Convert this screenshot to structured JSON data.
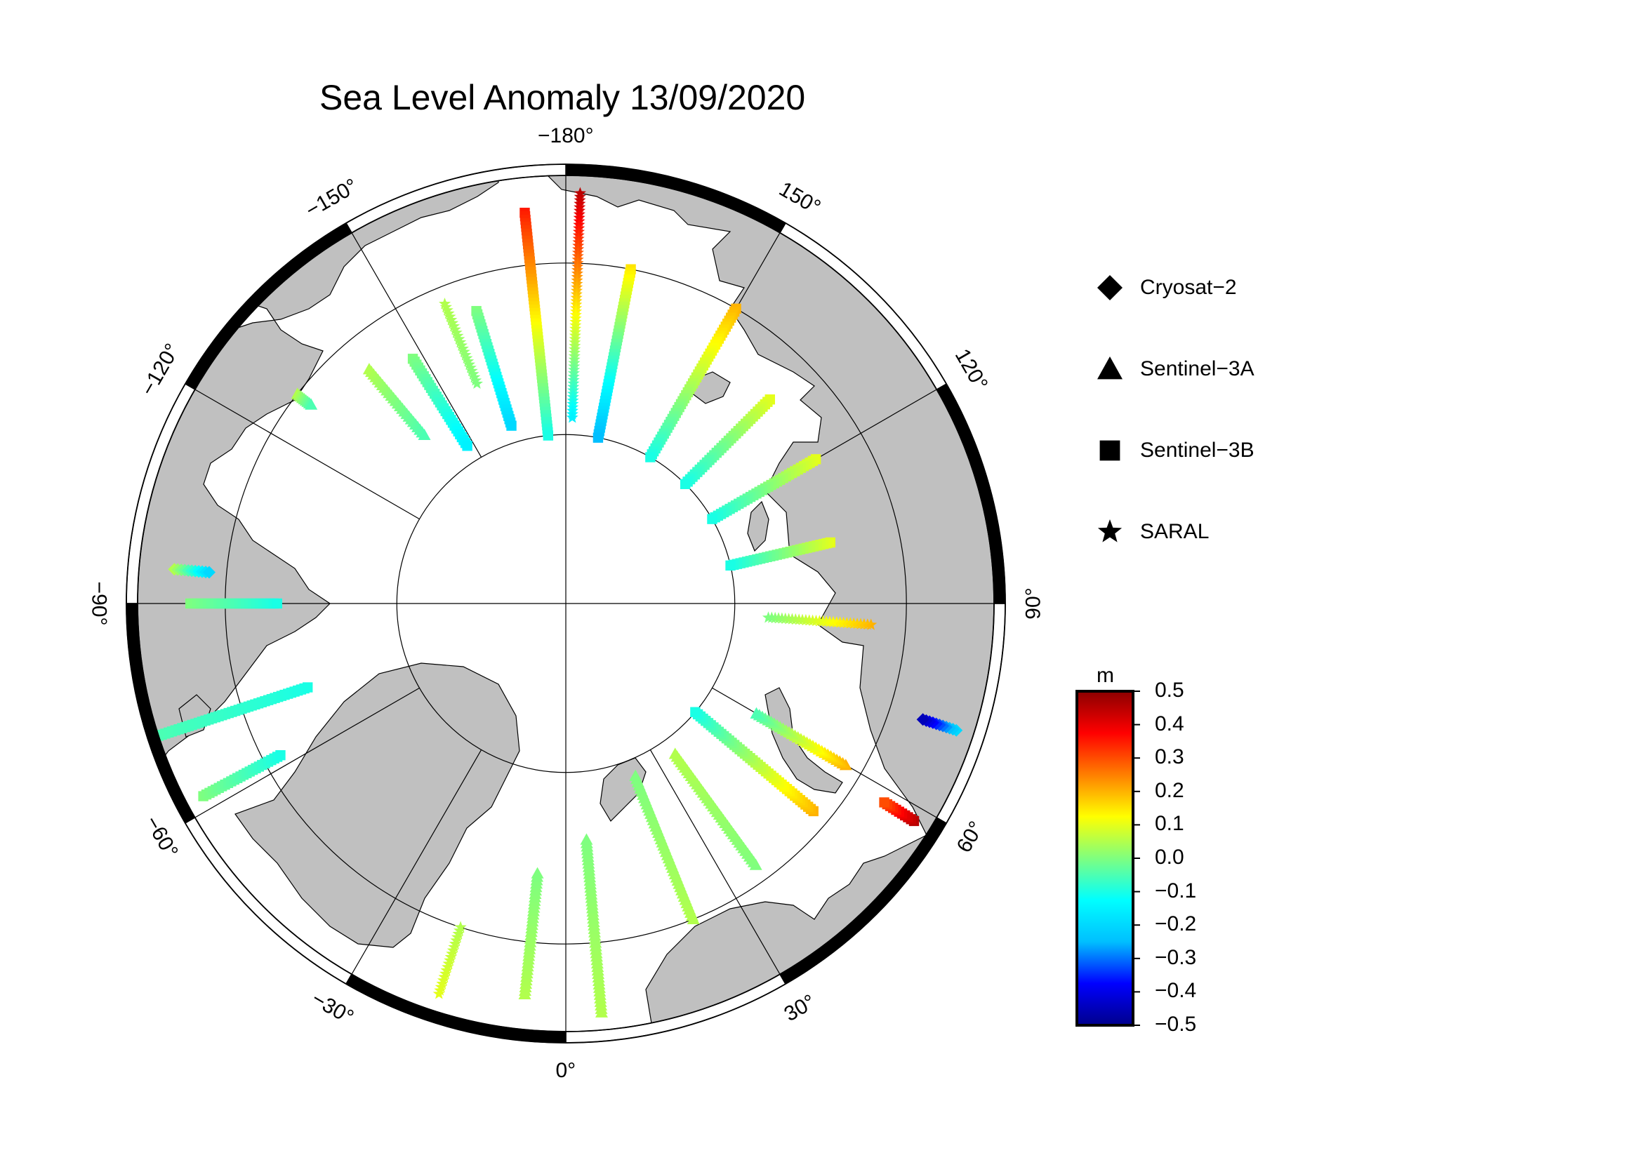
{
  "title": "Sea Level Anomaly 13/09/2020",
  "longitude_labels": [
    {
      "lon": -180,
      "text": "−180°"
    },
    {
      "lon": 150,
      "text": "150°"
    },
    {
      "lon": 120,
      "text": "120°"
    },
    {
      "lon": 90,
      "text": "90°"
    },
    {
      "lon": 60,
      "text": "60°"
    },
    {
      "lon": 30,
      "text": "30°"
    },
    {
      "lon": 0,
      "text": "0°"
    },
    {
      "lon": -30,
      "text": "−30°"
    },
    {
      "lon": -60,
      "text": "−60°"
    },
    {
      "lon": -90,
      "text": "−90°"
    },
    {
      "lon": -120,
      "text": "−120°"
    },
    {
      "lon": -150,
      "text": "−150°"
    }
  ],
  "legend": [
    {
      "symbol": "diamond",
      "label": "Cryosat−2"
    },
    {
      "symbol": "triangle",
      "label": "Sentinel−3A"
    },
    {
      "symbol": "square",
      "label": "Sentinel−3B"
    },
    {
      "symbol": "star",
      "label": "SARAL"
    }
  ],
  "colorbar": {
    "unit": "m",
    "ticks": [
      "0.5",
      "0.4",
      "0.3",
      "0.2",
      "0.1",
      "0.0",
      "−0.1",
      "−0.2",
      "−0.3",
      "−0.4",
      "−0.5"
    ],
    "range": [
      -0.5,
      0.5
    ],
    "colors": [
      "#00008b",
      "#0000ff",
      "#00bfff",
      "#00ffff",
      "#7fff7f",
      "#ffff00",
      "#ff7f00",
      "#ff0000",
      "#8b0000"
    ]
  },
  "map": {
    "projection": "polar-stereographic-north",
    "land_color": "#c0c0c0",
    "ocean_color": "#ffffff",
    "graticule_lons": [
      0,
      30,
      60,
      90,
      120,
      150,
      180,
      -150,
      -120,
      -90,
      -60,
      -30
    ],
    "frame": "alternating-black-white-30deg"
  },
  "tracks": [
    {
      "satellite": "SARAL",
      "lon": 178,
      "lat0": 66,
      "lat1": 79,
      "v0": 0.45,
      "v1": -0.15
    },
    {
      "satellite": "Sentinel-3B",
      "lon": -174,
      "lat0": 67,
      "lat1": 80,
      "v0": 0.35,
      "v1": -0.1
    },
    {
      "satellite": "Sentinel-3B",
      "lon": 169,
      "lat0": 70,
      "lat1": 80,
      "v0": 0.15,
      "v1": -0.25
    },
    {
      "satellite": "Sentinel-3B",
      "lon": 150,
      "lat0": 70,
      "lat1": 80,
      "v0": 0.2,
      "v1": -0.1
    },
    {
      "satellite": "Sentinel-3B",
      "lon": -163,
      "lat0": 72,
      "lat1": 79,
      "v0": 0.0,
      "v1": -0.2
    },
    {
      "satellite": "SARAL",
      "lon": -158,
      "lat0": 71,
      "lat1": 76,
      "v0": 0.05,
      "v1": 0.0
    },
    {
      "satellite": "Sentinel-3B",
      "lon": -148,
      "lat0": 73,
      "lat1": 79,
      "v0": 0.0,
      "v1": -0.15
    },
    {
      "satellite": "Sentinel-3A",
      "lon": -140,
      "lat0": 72,
      "lat1": 77,
      "v0": 0.05,
      "v1": -0.05
    },
    {
      "satellite": "Sentinel-3B",
      "lon": 135,
      "lat0": 73,
      "lat1": 80,
      "v0": 0.1,
      "v1": -0.1
    },
    {
      "satellite": "Sentinel-3B",
      "lon": 120,
      "lat0": 73,
      "lat1": 80,
      "v0": 0.1,
      "v1": -0.1
    },
    {
      "satellite": "Sentinel-3B",
      "lon": 103,
      "lat0": 74,
      "lat1": 80,
      "v0": 0.1,
      "v1": -0.1
    },
    {
      "satellite": "SARAL",
      "lon": 86,
      "lat0": 72,
      "lat1": 78,
      "v0": 0.2,
      "v1": 0.0
    },
    {
      "satellite": "Sentinel-3A",
      "lon": 60,
      "lat0": 71,
      "lat1": 77,
      "v0": 0.2,
      "v1": -0.05
    },
    {
      "satellite": "Sentinel-3B",
      "lon": 50,
      "lat0": 71,
      "lat1": 80,
      "v0": 0.2,
      "v1": -0.1
    },
    {
      "satellite": "Sentinel-3A",
      "lon": 36,
      "lat0": 71,
      "lat1": 79,
      "v0": 0.0,
      "v1": 0.05
    },
    {
      "satellite": "Sentinel-3A",
      "lon": 22,
      "lat0": 70,
      "lat1": 79,
      "v0": 0.05,
      "v1": 0.0
    },
    {
      "satellite": "Sentinel-3A",
      "lon": 5,
      "lat0": 66,
      "lat1": 76,
      "v0": 0.05,
      "v1": 0.0
    },
    {
      "satellite": "Sentinel-3A",
      "lon": -6,
      "lat0": 67,
      "lat1": 74,
      "v0": 0.05,
      "v1": 0.0
    },
    {
      "satellite": "SARAL",
      "lon": -18,
      "lat0": 66,
      "lat1": 70,
      "v0": 0.1,
      "v1": 0.05
    },
    {
      "satellite": "Sentinel-3B",
      "lon": -62,
      "lat0": 66,
      "lat1": 71,
      "v0": 0.0,
      "v1": -0.1
    },
    {
      "satellite": "Sentinel-3B",
      "lon": -72,
      "lat0": 65,
      "lat1": 74,
      "v0": -0.05,
      "v1": -0.1
    },
    {
      "satellite": "Sentinel-3B",
      "lon": -90,
      "lat0": 68,
      "lat1": 73,
      "v0": 0.0,
      "v1": -0.1
    },
    {
      "satellite": "Cryosat-2",
      "lon": -95,
      "lat0": 67,
      "lat1": 69,
      "v0": 0.05,
      "v1": -0.2
    },
    {
      "satellite": "Sentinel-3A",
      "lon": -128,
      "lat0": 70,
      "lat1": 71,
      "v0": 0.05,
      "v1": -0.05
    },
    {
      "satellite": "Cryosat-2",
      "lon": 72,
      "lat0": 66,
      "lat1": 68,
      "v0": -0.2,
      "v1": -0.45
    },
    {
      "satellite": "Sentinel-3B",
      "lon": 58,
      "lat0": 66,
      "lat1": 68,
      "v0": 0.45,
      "v1": 0.3
    }
  ]
}
